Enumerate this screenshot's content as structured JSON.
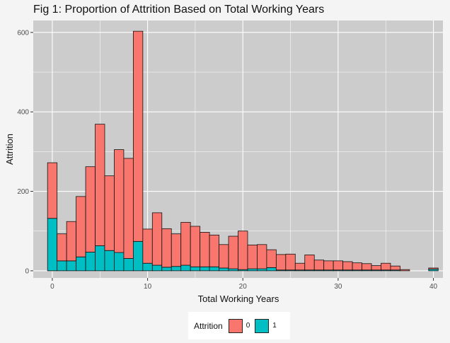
{
  "chart_data": {
    "type": "bar",
    "stacked": true,
    "title": "Fig 1: Proportion of Attrition Based on Total Working Years",
    "xlabel": "Total Working Years",
    "ylabel": "Attrition",
    "xlim": [
      -2,
      41
    ],
    "ylim": [
      -18,
      630
    ],
    "xticks": [
      0,
      10,
      20,
      30,
      40
    ],
    "yticks": [
      0,
      200,
      400,
      600
    ],
    "grid": true,
    "legend": {
      "title": "Attrition",
      "position": "bottom"
    },
    "x": [
      0,
      1,
      2,
      3,
      4,
      5,
      6,
      7,
      8,
      9,
      10,
      11,
      12,
      13,
      14,
      15,
      16,
      17,
      18,
      19,
      20,
      21,
      22,
      23,
      24,
      25,
      26,
      27,
      28,
      29,
      30,
      31,
      32,
      33,
      34,
      35,
      36,
      37,
      38,
      39,
      40
    ],
    "series": [
      {
        "name": "0",
        "color": "#f8766d",
        "values": [
          140,
          68,
          99,
          152,
          215,
          306,
          188,
          259,
          252,
          529,
          86,
          132,
          97,
          82,
          108,
          102,
          87,
          80,
          59,
          82,
          97,
          60,
          61,
          45,
          39,
          40,
          17,
          38,
          25,
          23,
          23,
          21,
          18,
          16,
          11,
          17,
          10,
          3,
          0,
          0,
          3
        ]
      },
      {
        "name": "1",
        "color": "#00bfc4",
        "values": [
          132,
          25,
          25,
          35,
          47,
          63,
          51,
          46,
          31,
          74,
          19,
          14,
          9,
          11,
          14,
          10,
          10,
          10,
          7,
          5,
          3,
          5,
          5,
          8,
          2,
          2,
          2,
          2,
          2,
          2,
          2,
          2,
          2,
          2,
          2,
          2,
          2,
          0,
          0,
          0,
          4
        ]
      }
    ]
  }
}
